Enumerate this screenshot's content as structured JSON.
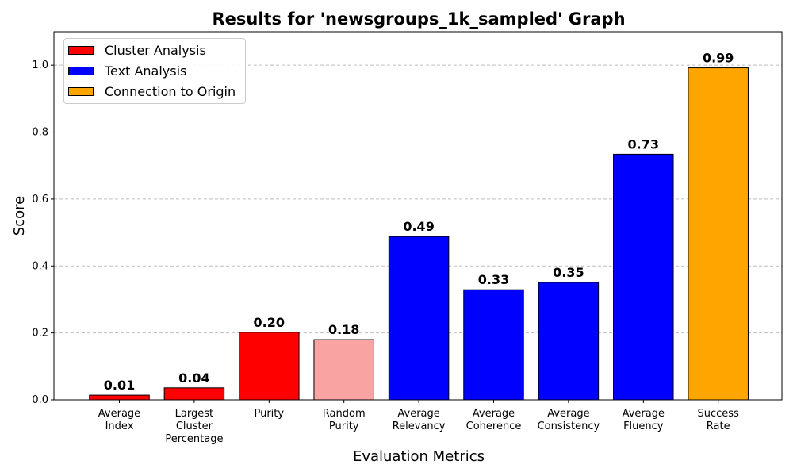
{
  "chart_data": {
    "type": "bar",
    "title": "Results for 'newsgroups_1k_sampled' Graph",
    "xlabel": "Evaluation Metrics",
    "ylabel": "Score",
    "ylim": [
      0,
      1.1
    ],
    "yticks": [
      "0.0",
      "0.2",
      "0.4",
      "0.6",
      "0.8",
      "1.0"
    ],
    "grid": "y-dashed",
    "legend_position": "top-left",
    "categories": [
      [
        "Average",
        "Index"
      ],
      [
        "Largest",
        "Cluster",
        "Percentage"
      ],
      [
        "Purity"
      ],
      [
        "Random",
        "Purity"
      ],
      [
        "Average",
        "Relevancy"
      ],
      [
        "Average",
        "Coherence"
      ],
      [
        "Average",
        "Consistency"
      ],
      [
        "Average",
        "Fluency"
      ],
      [
        "Success",
        "Rate"
      ]
    ],
    "values": [
      0.014,
      0.036,
      0.202,
      0.18,
      0.488,
      0.329,
      0.351,
      0.734,
      0.992
    ],
    "value_labels": [
      "0.01",
      "0.04",
      "0.20",
      "0.18",
      "0.49",
      "0.33",
      "0.35",
      "0.73",
      "0.99"
    ],
    "bar_colors": [
      "#ff0000",
      "#ff0000",
      "#ff0000",
      "#f9a3a3",
      "#0000ff",
      "#0000ff",
      "#0000ff",
      "#0000ff",
      "#ffa500"
    ],
    "legend": [
      {
        "label": "Cluster Analysis",
        "color": "#ff0000"
      },
      {
        "label": "Text Analysis",
        "color": "#0000ff"
      },
      {
        "label": "Connection to Origin",
        "color": "#ffa500"
      }
    ]
  }
}
